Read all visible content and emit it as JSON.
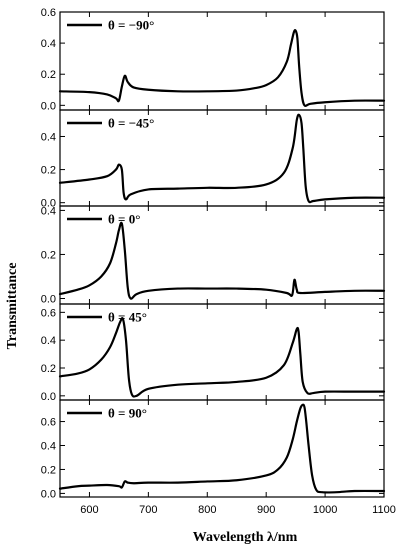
{
  "chart_data": {
    "type": "line",
    "xlabel": "Wavelength λ/nm",
    "ylabel": "Transmittance",
    "xlim": [
      550,
      1100
    ],
    "xticks": [
      600,
      700,
      800,
      900,
      1000,
      1100
    ],
    "line_color": "#000000",
    "legend_placement": "top-left",
    "panels": [
      {
        "label": "θ = −90°",
        "ylim": [
          -0.03,
          0.6
        ],
        "yticks": [
          0.0,
          0.2,
          0.4,
          0.6
        ],
        "x": [
          550,
          600,
          630,
          645,
          650,
          655,
          660,
          665,
          675,
          700,
          750,
          800,
          850,
          880,
          900,
          920,
          935,
          942,
          947,
          950,
          953,
          956,
          960,
          965,
          975,
          1000,
          1050,
          1100
        ],
        "y": [
          0.09,
          0.085,
          0.07,
          0.045,
          0.03,
          0.12,
          0.19,
          0.15,
          0.115,
          0.1,
          0.09,
          0.09,
          0.095,
          0.11,
          0.13,
          0.18,
          0.28,
          0.39,
          0.47,
          0.48,
          0.43,
          0.25,
          0.08,
          0.0,
          0.01,
          0.02,
          0.03,
          0.03
        ]
      },
      {
        "label": "θ = −45°",
        "ylim": [
          -0.02,
          0.56
        ],
        "yticks": [
          0.0,
          0.2,
          0.4
        ],
        "x": [
          550,
          600,
          630,
          645,
          650,
          655,
          658,
          662,
          670,
          700,
          750,
          800,
          850,
          900,
          930,
          945,
          952,
          956,
          960,
          963,
          967,
          972,
          980,
          1000,
          1050,
          1100
        ],
        "y": [
          0.12,
          0.14,
          0.16,
          0.2,
          0.23,
          0.2,
          0.06,
          0.02,
          0.05,
          0.08,
          0.085,
          0.09,
          0.09,
          0.11,
          0.18,
          0.33,
          0.5,
          0.53,
          0.48,
          0.33,
          0.1,
          0.01,
          0.01,
          0.02,
          0.03,
          0.03
        ]
      },
      {
        "label": "θ = 0°",
        "ylim": [
          -0.025,
          0.42
        ],
        "yticks": [
          0.0,
          0.2,
          0.4
        ],
        "x": [
          550,
          580,
          600,
          620,
          635,
          645,
          650,
          655,
          660,
          665,
          670,
          680,
          700,
          750,
          800,
          850,
          900,
          935,
          944,
          948,
          952,
          958,
          1000,
          1050,
          1100
        ],
        "y": [
          0.02,
          0.04,
          0.06,
          0.1,
          0.16,
          0.25,
          0.31,
          0.34,
          0.22,
          0.05,
          0.0,
          0.02,
          0.035,
          0.045,
          0.045,
          0.045,
          0.04,
          0.025,
          0.015,
          0.085,
          0.04,
          0.025,
          0.03,
          0.035,
          0.035
        ]
      },
      {
        "label": "θ = 45°",
        "ylim": [
          -0.03,
          0.66
        ],
        "yticks": [
          0.0,
          0.2,
          0.4,
          0.6
        ],
        "x": [
          550,
          580,
          600,
          620,
          635,
          645,
          652,
          657,
          662,
          667,
          672,
          680,
          700,
          750,
          800,
          850,
          900,
          930,
          945,
          952,
          955,
          958,
          962,
          970,
          980,
          1000,
          1050,
          1100
        ],
        "y": [
          0.14,
          0.16,
          0.19,
          0.26,
          0.35,
          0.45,
          0.53,
          0.55,
          0.4,
          0.12,
          0.01,
          0.0,
          0.05,
          0.08,
          0.09,
          0.1,
          0.13,
          0.22,
          0.38,
          0.48,
          0.46,
          0.3,
          0.1,
          0.02,
          0.02,
          0.03,
          0.03,
          0.03
        ]
      },
      {
        "label": "θ = 90°",
        "ylim": [
          -0.03,
          0.78
        ],
        "yticks": [
          0.0,
          0.2,
          0.4,
          0.6
        ],
        "x": [
          550,
          580,
          600,
          630,
          650,
          655,
          660,
          665,
          675,
          700,
          750,
          800,
          850,
          900,
          920,
          935,
          945,
          952,
          958,
          962,
          965,
          968,
          972,
          978,
          985,
          995,
          1020,
          1050,
          1100
        ],
        "y": [
          0.04,
          0.06,
          0.065,
          0.07,
          0.06,
          0.05,
          0.1,
          0.09,
          0.085,
          0.09,
          0.09,
          0.1,
          0.11,
          0.15,
          0.2,
          0.3,
          0.45,
          0.6,
          0.71,
          0.74,
          0.72,
          0.6,
          0.4,
          0.15,
          0.03,
          0.01,
          0.01,
          0.02,
          0.02
        ]
      }
    ]
  }
}
